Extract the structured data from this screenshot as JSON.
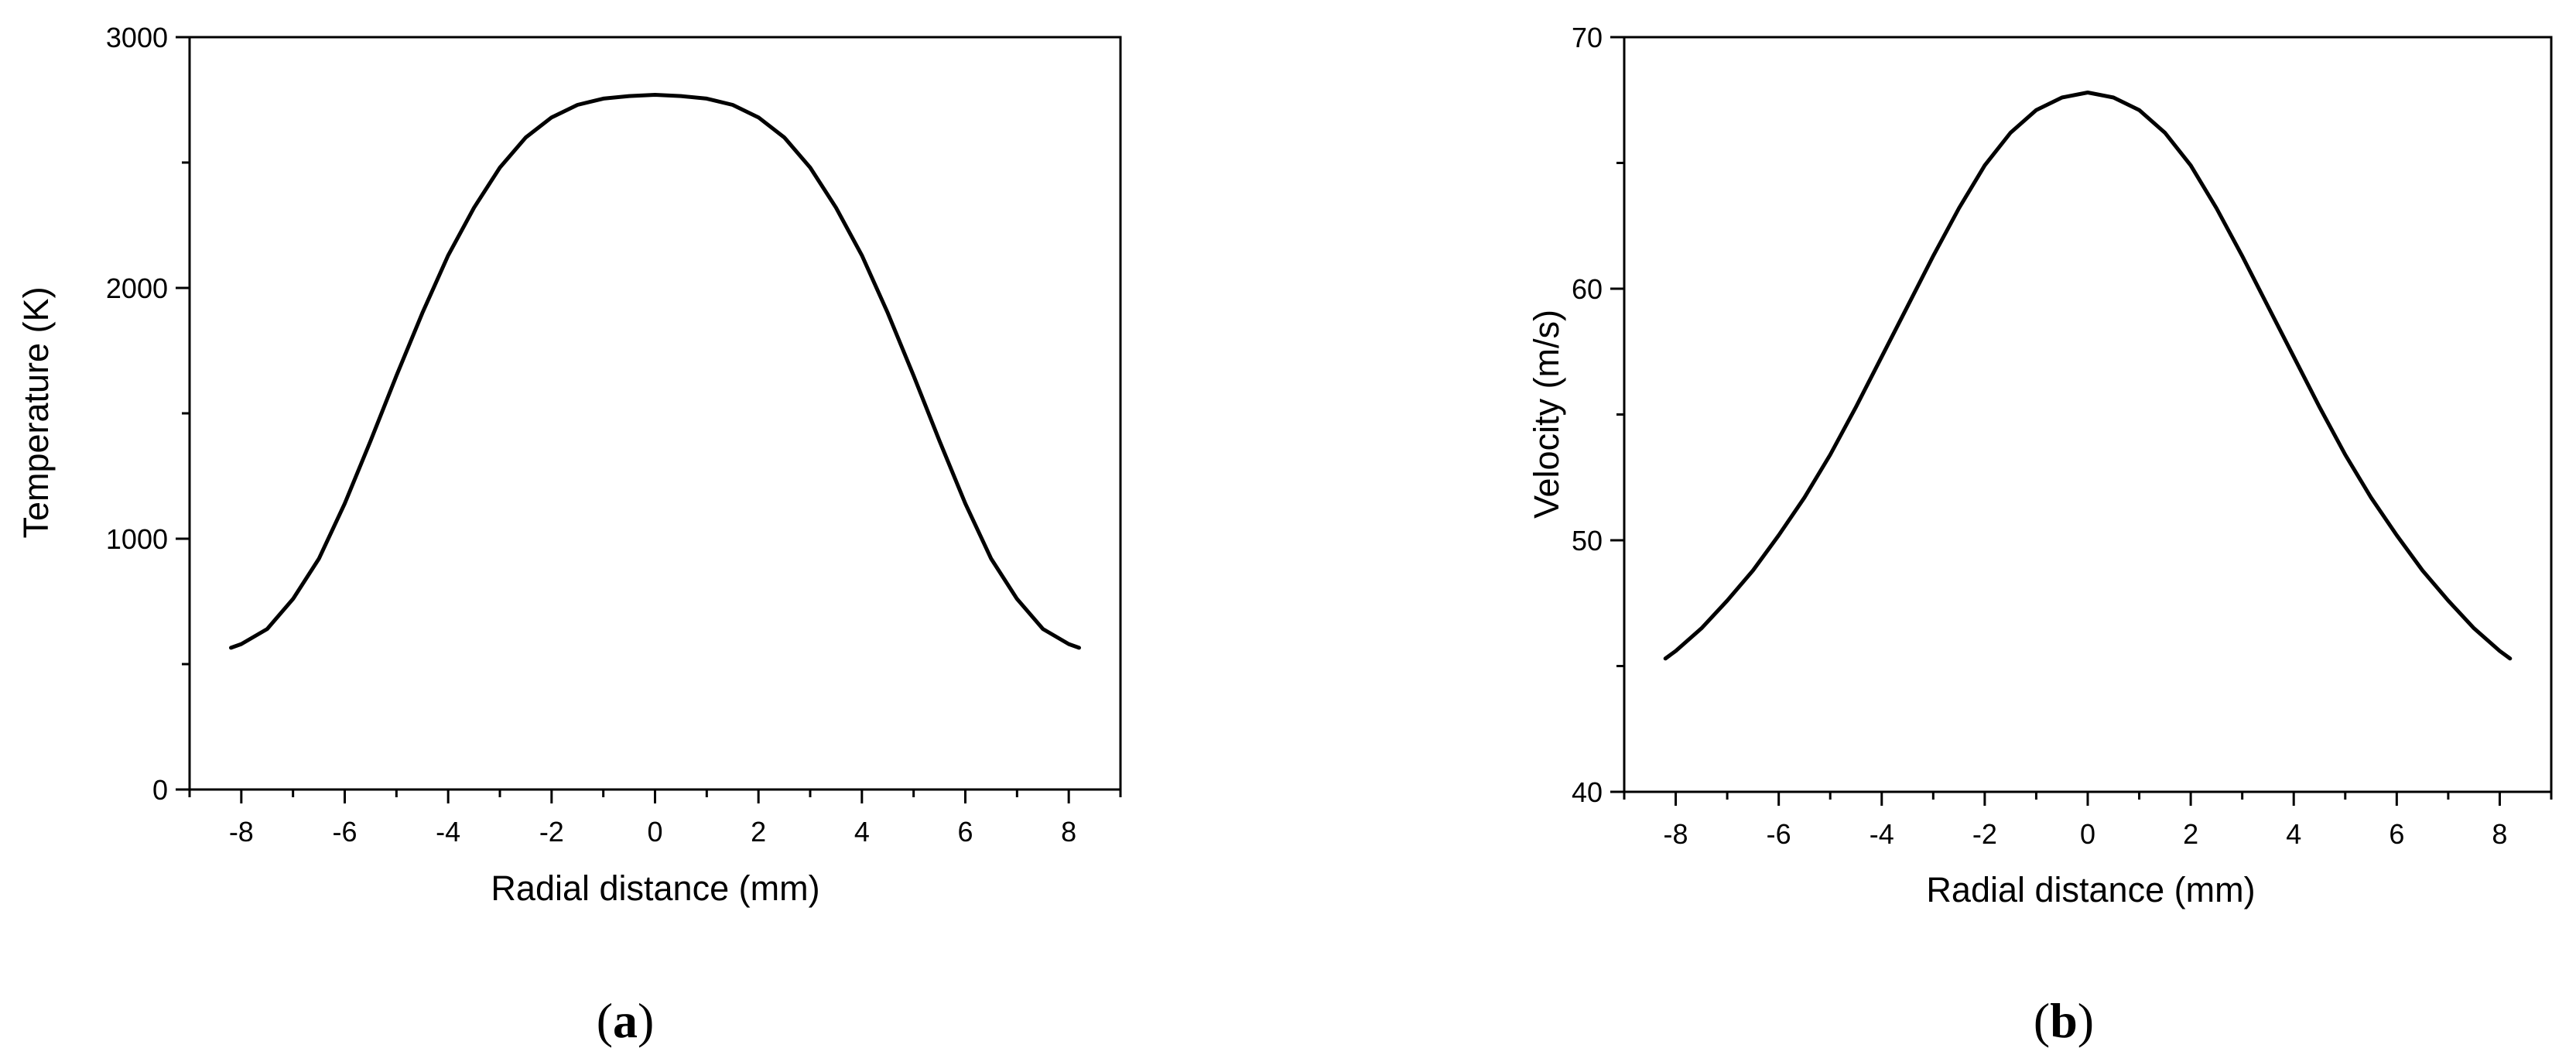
{
  "chart_data": [
    {
      "type": "line",
      "panel_label": "a",
      "xlabel": "Radial distance (mm)",
      "ylabel": "Temperature (K)",
      "xlim": [
        -9,
        9
      ],
      "ylim": [
        0,
        3000
      ],
      "x_ticks": [
        -8,
        -6,
        -4,
        -2,
        0,
        2,
        4,
        6,
        8
      ],
      "x_tick_labels": [
        "-8",
        "-6",
        "-4",
        "-2",
        "0",
        "2",
        "4",
        "6",
        "8"
      ],
      "y_ticks": [
        0,
        1000,
        2000,
        3000
      ],
      "y_tick_labels": [
        "0",
        "1000",
        "2000",
        "3000"
      ],
      "grid": false,
      "series": [
        {
          "x": [
            -8.2,
            -8.0,
            -7.5,
            -7.0,
            -6.5,
            -6.0,
            -5.5,
            -5.0,
            -4.5,
            -4.0,
            -3.5,
            -3.0,
            -2.5,
            -2.0,
            -1.5,
            -1.0,
            -0.5,
            0,
            0.5,
            1.0,
            1.5,
            2.0,
            2.5,
            3.0,
            3.5,
            4.0,
            4.5,
            5.0,
            5.5,
            6.0,
            6.5,
            7.0,
            7.5,
            8.0,
            8.2
          ],
          "y": [
            565,
            580,
            640,
            760,
            920,
            1140,
            1390,
            1650,
            1900,
            2130,
            2320,
            2480,
            2600,
            2680,
            2730,
            2755,
            2765,
            2770,
            2765,
            2755,
            2730,
            2680,
            2600,
            2480,
            2320,
            2130,
            1900,
            1650,
            1390,
            1140,
            920,
            760,
            640,
            580,
            565
          ]
        }
      ]
    },
    {
      "type": "line",
      "panel_label": "b",
      "xlabel": "Radial distance (mm)",
      "ylabel": "Velocity (m/s)",
      "xlim": [
        -9,
        9
      ],
      "ylim": [
        40,
        70
      ],
      "x_ticks": [
        -8,
        -6,
        -4,
        -2,
        0,
        2,
        4,
        6,
        8
      ],
      "x_tick_labels": [
        "-8",
        "-6",
        "-4",
        "-2",
        "0",
        "2",
        "4",
        "6",
        "8"
      ],
      "y_ticks": [
        40,
        50,
        60,
        70
      ],
      "y_tick_labels": [
        "40",
        "50",
        "60",
        "70"
      ],
      "grid": false,
      "series": [
        {
          "x": [
            -8.2,
            -8.0,
            -7.5,
            -7.0,
            -6.5,
            -6.0,
            -5.5,
            -5.0,
            -4.5,
            -4.0,
            -3.5,
            -3.0,
            -2.5,
            -2.0,
            -1.5,
            -1.0,
            -0.5,
            0,
            0.5,
            1.0,
            1.5,
            2.0,
            2.5,
            3.0,
            3.5,
            4.0,
            4.5,
            5.0,
            5.5,
            6.0,
            6.5,
            7.0,
            7.5,
            8.0,
            8.2
          ],
          "y": [
            45.3,
            45.6,
            46.5,
            47.6,
            48.8,
            50.2,
            51.7,
            53.4,
            55.3,
            57.3,
            59.3,
            61.3,
            63.2,
            64.9,
            66.2,
            67.1,
            67.6,
            67.8,
            67.6,
            67.1,
            66.2,
            64.9,
            63.2,
            61.3,
            59.3,
            57.3,
            55.3,
            53.4,
            51.7,
            50.2,
            48.8,
            47.6,
            46.5,
            45.6,
            45.3
          ]
        }
      ]
    }
  ]
}
